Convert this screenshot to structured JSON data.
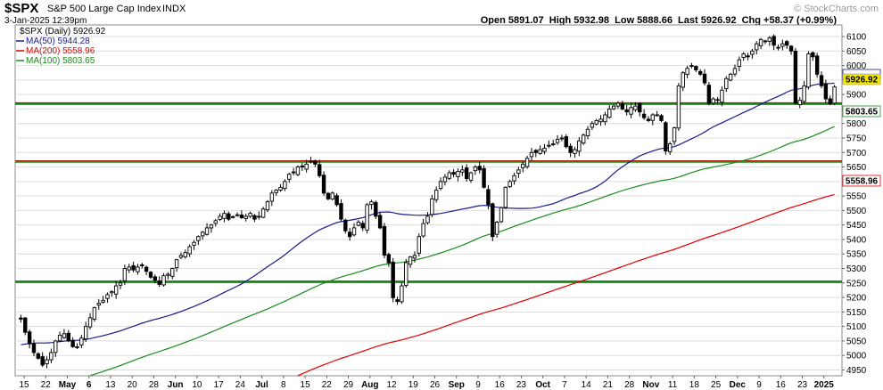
{
  "header": {
    "symbol": "$SPX",
    "name": "S&P 500 Large Cap Index",
    "exchange": "INDX",
    "date": "3-Jan-2025 12:39pm",
    "ohlc": "Open 5891.07  High 5932.98  Low 5888.66  Last 5926.92  Chg +58.37 (+0.99%)",
    "watermark": "© StockCharts.com"
  },
  "legend": {
    "price": "$SPX (Daily) 5926.92",
    "ma50": "MA(50) 5944.28",
    "ma200": "MA(200) 5558.96",
    "ma100": "MA(100) 5803.65"
  },
  "tags": {
    "last": "5926.92",
    "ma100": "5803.65",
    "ma200": "5558.96"
  },
  "colors": {
    "ma50": "#1a1a8c",
    "ma200": "#e00000",
    "ma100": "#1a8c1a",
    "hline_red": "#e00000",
    "hline_green": "#1a8c1a",
    "last_tag": "#f5e600",
    "grid": "#dddddd"
  },
  "chart_data": {
    "type": "candlestick",
    "title": "$SPX S&P 500 Large Cap Index INDX",
    "ylim": [
      4930,
      6140
    ],
    "yticks": [
      4950,
      5000,
      5050,
      5100,
      5150,
      5200,
      5250,
      5300,
      5350,
      5400,
      5450,
      5500,
      5550,
      5600,
      5650,
      5700,
      5750,
      5800,
      5850,
      5900,
      5950,
      6000,
      6050,
      6100
    ],
    "yaxis_side": "right",
    "grid": true,
    "legend_position": "top-left",
    "x_ticks": [
      {
        "label": "15",
        "bold": false
      },
      {
        "label": "22",
        "bold": false
      },
      {
        "label": "May",
        "bold": true
      },
      {
        "label": "6",
        "bold": true
      },
      {
        "label": "13",
        "bold": false
      },
      {
        "label": "20",
        "bold": false
      },
      {
        "label": "28",
        "bold": false
      },
      {
        "label": "Jun",
        "bold": true
      },
      {
        "label": "10",
        "bold": false
      },
      {
        "label": "17",
        "bold": false
      },
      {
        "label": "24",
        "bold": false
      },
      {
        "label": "Jul",
        "bold": true
      },
      {
        "label": "8",
        "bold": false
      },
      {
        "label": "15",
        "bold": false
      },
      {
        "label": "22",
        "bold": false
      },
      {
        "label": "29",
        "bold": false
      },
      {
        "label": "Aug",
        "bold": true
      },
      {
        "label": "12",
        "bold": false
      },
      {
        "label": "19",
        "bold": false
      },
      {
        "label": "26",
        "bold": false
      },
      {
        "label": "Sep",
        "bold": true
      },
      {
        "label": "9",
        "bold": false
      },
      {
        "label": "16",
        "bold": false
      },
      {
        "label": "23",
        "bold": false
      },
      {
        "label": "Oct",
        "bold": true
      },
      {
        "label": "7",
        "bold": false
      },
      {
        "label": "14",
        "bold": false
      },
      {
        "label": "21",
        "bold": false
      },
      {
        "label": "28",
        "bold": false
      },
      {
        "label": "Nov",
        "bold": true
      },
      {
        "label": "11",
        "bold": false
      },
      {
        "label": "18",
        "bold": false
      },
      {
        "label": "25",
        "bold": false
      },
      {
        "label": "Dec",
        "bold": true
      },
      {
        "label": "9",
        "bold": false
      },
      {
        "label": "16",
        "bold": false
      },
      {
        "label": "23",
        "bold": false
      },
      {
        "label": "2025",
        "bold": true
      }
    ],
    "horizontal_levels": [
      {
        "value": 5870,
        "color": "red"
      },
      {
        "value": 5867,
        "color": "green"
      },
      {
        "value": 5670,
        "color": "red"
      },
      {
        "value": 5668,
        "color": "green"
      },
      {
        "value": 5255,
        "color": "red"
      },
      {
        "value": 5253,
        "color": "green"
      }
    ],
    "close_series": [
      5125,
      5080,
      5040,
      5010,
      4990,
      4967,
      4985,
      5010,
      5050,
      5070,
      5075,
      5050,
      5030,
      5030,
      5060,
      5100,
      5130,
      5165,
      5180,
      5190,
      5210,
      5220,
      5240,
      5250,
      5300,
      5305,
      5295,
      5305,
      5310,
      5290,
      5270,
      5260,
      5245,
      5275,
      5280,
      5300,
      5330,
      5345,
      5355,
      5375,
      5390,
      5410,
      5425,
      5440,
      5450,
      5465,
      5480,
      5490,
      5470,
      5478,
      5485,
      5475,
      5480,
      5490,
      5470,
      5480,
      5505,
      5530,
      5560,
      5570,
      5580,
      5600,
      5625,
      5630,
      5650,
      5650,
      5660,
      5670,
      5660,
      5620,
      5560,
      5540,
      5560,
      5520,
      5470,
      5430,
      5410,
      5440,
      5460,
      5440,
      5520,
      5530,
      5480,
      5440,
      5346,
      5320,
      5199,
      5186,
      5240,
      5320,
      5340,
      5345,
      5410,
      5455,
      5480,
      5540,
      5570,
      5600,
      5615,
      5630,
      5625,
      5635,
      5640,
      5610,
      5630,
      5650,
      5640,
      5580,
      5520,
      5410,
      5460,
      5510,
      5580,
      5600,
      5620,
      5640,
      5660,
      5680,
      5700,
      5700,
      5710,
      5715,
      5725,
      5730,
      5745,
      5750,
      5720,
      5700,
      5710,
      5740,
      5760,
      5780,
      5800,
      5810,
      5815,
      5830,
      5850,
      5860,
      5870,
      5850,
      5840,
      5855,
      5860,
      5840,
      5820,
      5810,
      5830,
      5830,
      5810,
      5705,
      5730,
      5785,
      5930,
      5975,
      5990,
      6000,
      5985,
      5970,
      5940,
      5870,
      5885,
      5880,
      5915,
      5955,
      5970,
      5990,
      6020,
      6040,
      6030,
      6050,
      6075,
      6090,
      6085,
      6095,
      6070,
      6060,
      6075,
      6070,
      6050,
      5870,
      5880,
      5930,
      6040,
      6030,
      5970,
      5930,
      5885,
      5868,
      5926
    ]
  }
}
